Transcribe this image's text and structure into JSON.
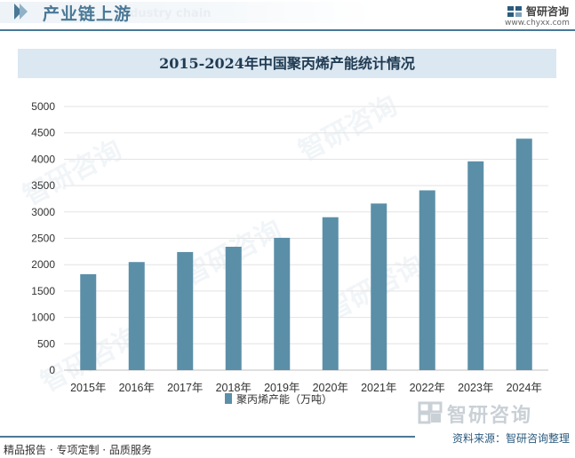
{
  "header": {
    "section_title": "产业链上游",
    "ghost_text": "Industry chain",
    "brand_name": "智研咨询",
    "brand_url": "www.chyxx.com"
  },
  "watermark": {
    "text": "智研咨询"
  },
  "footer": {
    "tagline": "精品报告 · 专项定制 · 品质服务",
    "source": "资料来源：智研咨询整理"
  },
  "colors": {
    "accent": "#4a7896",
    "bar": "#5b8fa8",
    "title_band": "#dbe7f1"
  },
  "chart_data": {
    "type": "bar",
    "title": "2015-2024年中国聚丙烯产能统计情况",
    "categories": [
      "2015年",
      "2016年",
      "2017年",
      "2018年",
      "2019年",
      "2020年",
      "2021年",
      "2022年",
      "2023年",
      "2024年"
    ],
    "series": [
      {
        "name": "聚丙烯产能（万吨）",
        "values": [
          1820,
          2050,
          2240,
          2340,
          2510,
          2900,
          3160,
          3410,
          3960,
          4390
        ]
      }
    ],
    "ylim": [
      0,
      5000
    ],
    "yticks": [
      0,
      500,
      1000,
      1500,
      2000,
      2500,
      3000,
      3500,
      4000,
      4500,
      5000
    ],
    "grid": true,
    "legend": "bottom"
  }
}
